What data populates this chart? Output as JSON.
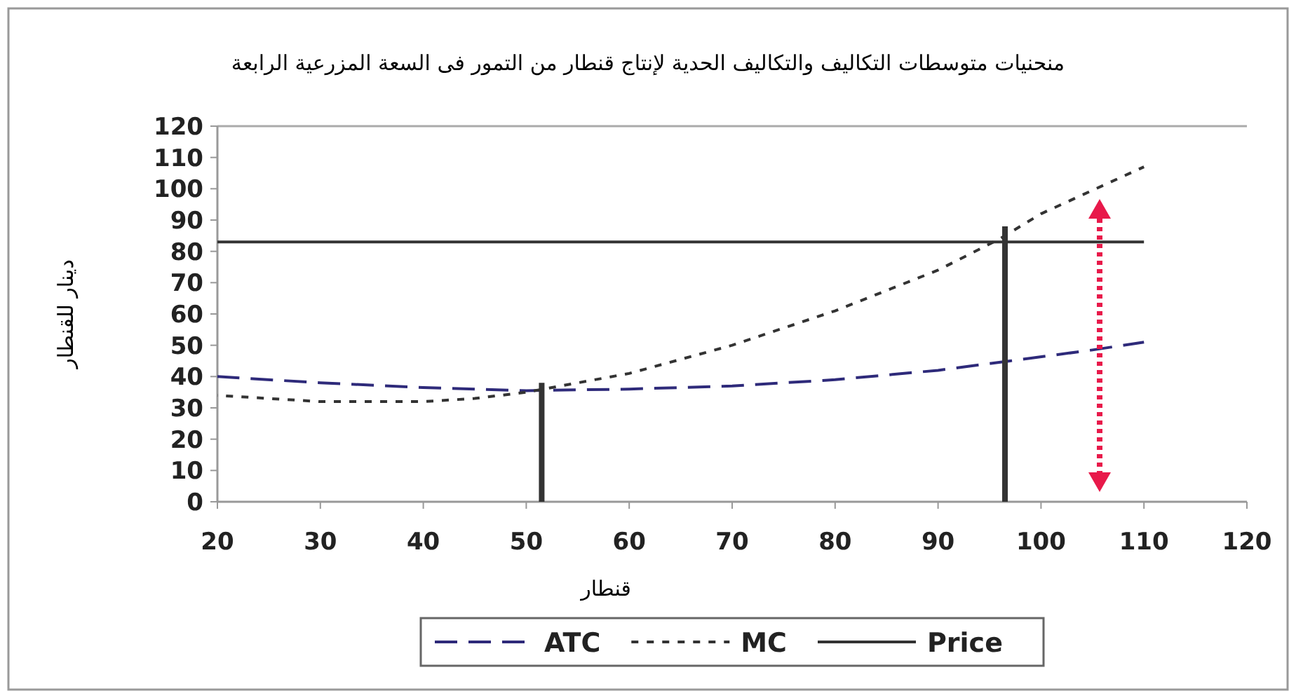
{
  "chart_data": {
    "type": "line",
    "title": "منحنيات متوسطات التكاليف والتكاليف الحدية لإنتاج قنطار من التمور فى السعة المزرعية الرابعة",
    "xlabel": "قنطار",
    "ylabel": "دينار للقنطار",
    "xlim": [
      20,
      120
    ],
    "xticks": [
      20,
      30,
      40,
      50,
      60,
      70,
      80,
      90,
      100,
      110,
      120
    ],
    "ylim": [
      0,
      120
    ],
    "yticks": [
      0,
      10,
      20,
      30,
      40,
      50,
      60,
      70,
      80,
      90,
      100,
      110,
      120
    ],
    "legend": "bottom",
    "grid": false,
    "series": [
      {
        "name": "ATC",
        "color": "#2e2a7a",
        "line_style": "dashed",
        "x": [
          20,
          30,
          40,
          50,
          60,
          70,
          80,
          90,
          97,
          105,
          110
        ],
        "values": [
          40,
          38,
          36.5,
          35.5,
          36,
          37,
          39,
          42,
          45,
          48.5,
          51
        ]
      },
      {
        "name": "MC",
        "color": "#333333",
        "line_style": "dotted",
        "x": [
          20,
          30,
          40,
          45,
          50,
          55,
          60,
          70,
          80,
          90,
          96,
          100,
          110
        ],
        "values": [
          34,
          32,
          32,
          33,
          35,
          38,
          41,
          50,
          61,
          74,
          84,
          92,
          107
        ]
      },
      {
        "name": "Price",
        "color": "#333333",
        "line_style": "solid",
        "x": [
          20,
          110
        ],
        "values": [
          83,
          83
        ]
      },
      {
        "color": "#333333",
        "line_style": "solid",
        "x": [
          51.5,
          51.5
        ],
        "values": [
          0,
          38
        ]
      },
      {
        "color": "#333333",
        "line_style": "solid",
        "x": [
          96.5,
          96.5
        ],
        "values": [
          0,
          88
        ]
      }
    ]
  }
}
